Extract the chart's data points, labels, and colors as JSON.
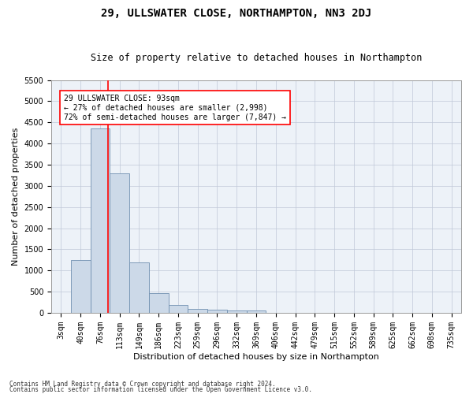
{
  "title": "29, ULLSWATER CLOSE, NORTHAMPTON, NN3 2DJ",
  "subtitle": "Size of property relative to detached houses in Northampton",
  "xlabel": "Distribution of detached houses by size in Northampton",
  "ylabel": "Number of detached properties",
  "footer_line1": "Contains HM Land Registry data © Crown copyright and database right 2024.",
  "footer_line2": "Contains public sector information licensed under the Open Government Licence v3.0.",
  "bar_labels": [
    "3sqm",
    "40sqm",
    "76sqm",
    "113sqm",
    "149sqm",
    "186sqm",
    "223sqm",
    "259sqm",
    "296sqm",
    "332sqm",
    "369sqm",
    "406sqm",
    "442sqm",
    "479sqm",
    "515sqm",
    "552sqm",
    "589sqm",
    "625sqm",
    "662sqm",
    "698sqm",
    "735sqm"
  ],
  "bar_values": [
    0,
    1250,
    4350,
    3300,
    1200,
    460,
    190,
    100,
    75,
    55,
    50,
    0,
    0,
    0,
    0,
    0,
    0,
    0,
    0,
    0,
    0
  ],
  "bar_color": "#ccd9e8",
  "bar_edge_color": "#7090b0",
  "property_line_color": "red",
  "property_line_x": 2.42,
  "annotation_text": "29 ULLSWATER CLOSE: 93sqm\n← 27% of detached houses are smaller (2,998)\n72% of semi-detached houses are larger (7,847) →",
  "annotation_box_color": "white",
  "annotation_box_edge_color": "red",
  "ylim": [
    0,
    5500
  ],
  "yticks": [
    0,
    500,
    1000,
    1500,
    2000,
    2500,
    3000,
    3500,
    4000,
    4500,
    5000,
    5500
  ],
  "background_color": "#edf2f8",
  "grid_color": "#c0c8d8",
  "title_fontsize": 10,
  "subtitle_fontsize": 8.5,
  "ylabel_fontsize": 8,
  "xlabel_fontsize": 8,
  "tick_fontsize": 7,
  "footer_fontsize": 5.5
}
